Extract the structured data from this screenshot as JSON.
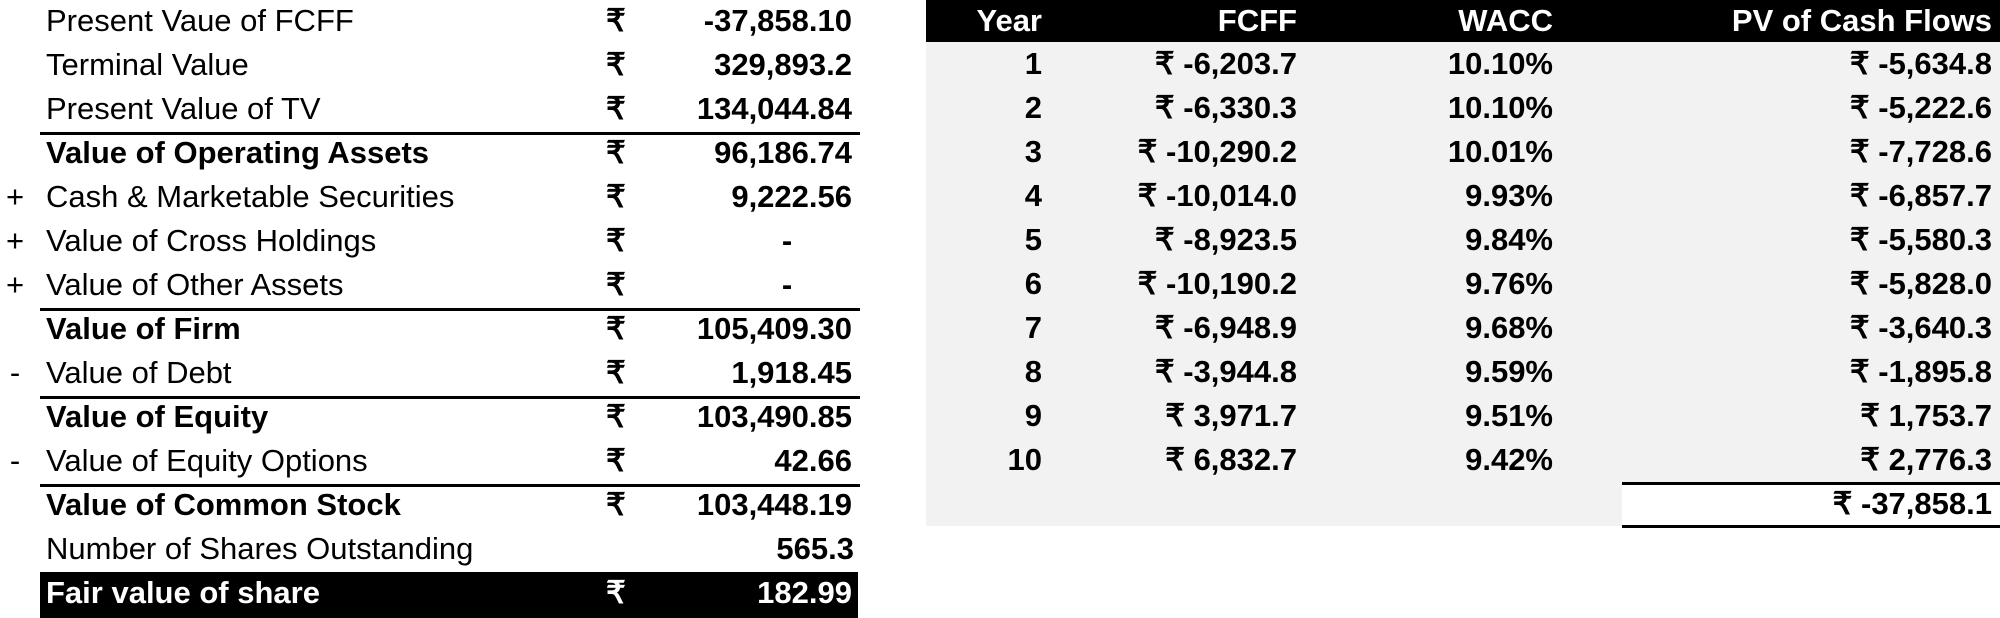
{
  "valuation": {
    "currency_symbol": "₹",
    "rows": [
      {
        "sign": "",
        "label": "Present Vaue of FCFF",
        "cur": "₹",
        "value": "-37,858.10"
      },
      {
        "sign": "",
        "label": "Terminal Value",
        "cur": "₹",
        "value": "329,893.2"
      },
      {
        "sign": "",
        "label": "Present Value of TV",
        "cur": "₹",
        "value": "134,044.84"
      },
      {
        "sign": "",
        "label": "Value of Operating Assets",
        "cur": "₹",
        "value": "96,186.74"
      },
      {
        "sign": "+",
        "label": "Cash & Marketable Securities",
        "cur": "₹",
        "value": "9,222.56"
      },
      {
        "sign": "+",
        "label": "Value of Cross Holdings",
        "cur": "₹",
        "value": "-"
      },
      {
        "sign": "+",
        "label": "Value of Other Assets",
        "cur": "₹",
        "value": "-"
      },
      {
        "sign": "",
        "label": "Value of Firm",
        "cur": "₹",
        "value": "105,409.30"
      },
      {
        "sign": "-",
        "label": "Value of Debt",
        "cur": "₹",
        "value": "1,918.45"
      },
      {
        "sign": "",
        "label": "Value of Equity",
        "cur": "₹",
        "value": "103,490.85"
      },
      {
        "sign": "-",
        "label": "Value of Equity Options",
        "cur": "₹",
        "value": "42.66"
      },
      {
        "sign": "",
        "label": "Value of Common Stock",
        "cur": "₹",
        "value": "103,448.19"
      },
      {
        "sign": "",
        "label": "Number of Shares Outstanding",
        "cur": "",
        "value": "565.3"
      },
      {
        "sign": "",
        "label": "Fair value of share",
        "cur": "₹",
        "value": "182.99"
      }
    ]
  },
  "cashflows": {
    "headers": {
      "year": "Year",
      "fcff": "FCFF",
      "wacc": "WACC",
      "pv": "PV of Cash Flows"
    },
    "rows": [
      {
        "year": "1",
        "fcff": "₹ -6,203.7",
        "wacc": "10.10%",
        "pv": "₹ -5,634.8"
      },
      {
        "year": "2",
        "fcff": "₹ -6,330.3",
        "wacc": "10.10%",
        "pv": "₹ -5,222.6"
      },
      {
        "year": "3",
        "fcff": "₹ -10,290.2",
        "wacc": "10.01%",
        "pv": "₹ -7,728.6"
      },
      {
        "year": "4",
        "fcff": "₹ -10,014.0",
        "wacc": "9.93%",
        "pv": "₹ -6,857.7"
      },
      {
        "year": "5",
        "fcff": "₹ -8,923.5",
        "wacc": "9.84%",
        "pv": "₹ -5,580.3"
      },
      {
        "year": "6",
        "fcff": "₹ -10,190.2",
        "wacc": "9.76%",
        "pv": "₹ -5,828.0"
      },
      {
        "year": "7",
        "fcff": "₹ -6,948.9",
        "wacc": "9.68%",
        "pv": "₹ -3,640.3"
      },
      {
        "year": "8",
        "fcff": "₹ -3,944.8",
        "wacc": "9.59%",
        "pv": "₹ -1,895.8"
      },
      {
        "year": "9",
        "fcff": "₹ 3,971.7",
        "wacc": "9.51%",
        "pv": "₹ 1,753.7"
      },
      {
        "year": "10",
        "fcff": "₹ 6,832.7",
        "wacc": "9.42%",
        "pv": "₹ 2,776.3"
      }
    ],
    "total_pv": "₹ -37,858.1"
  }
}
